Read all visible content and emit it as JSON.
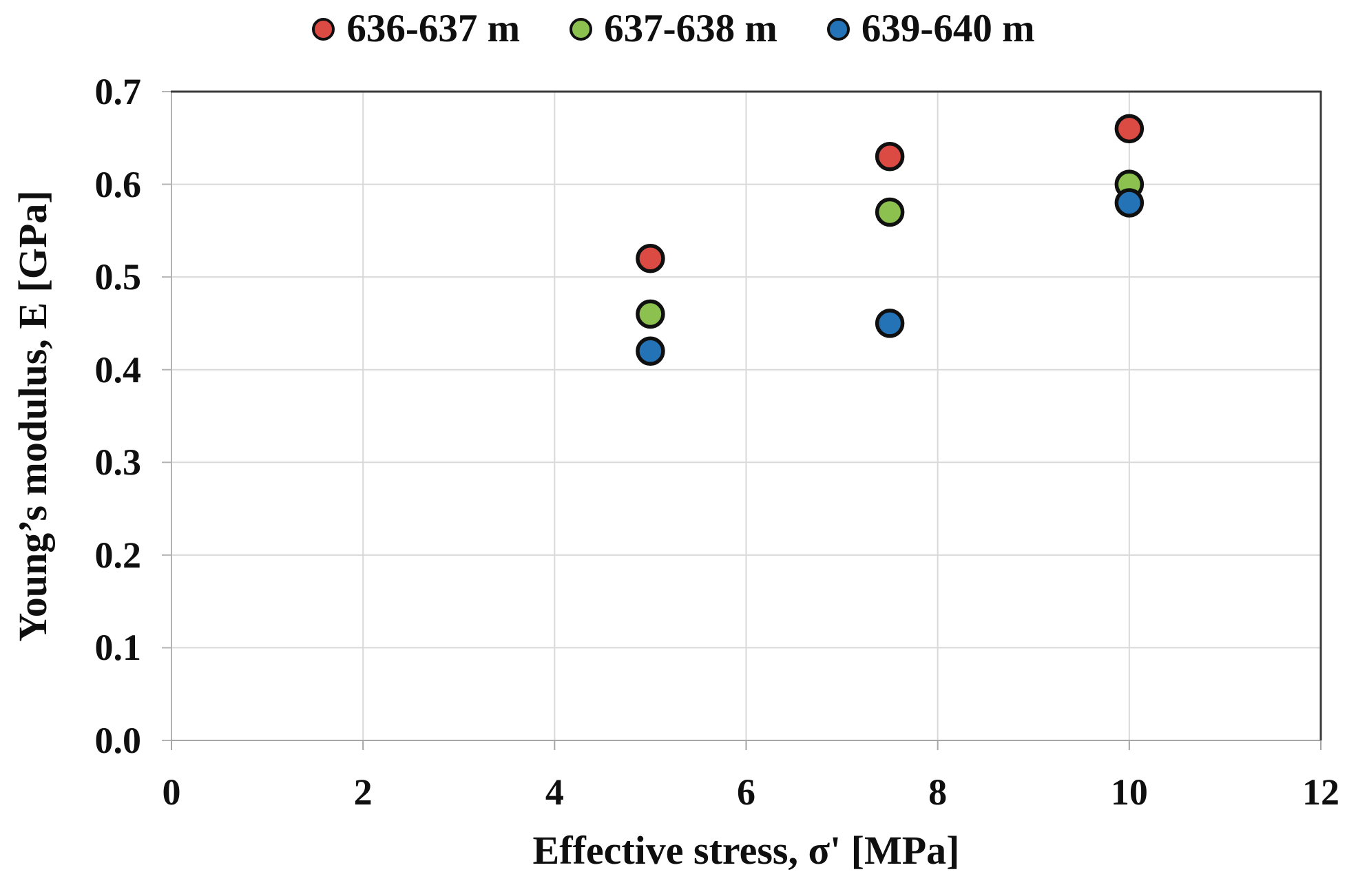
{
  "chart_data": {
    "type": "scatter",
    "title": "",
    "xlabel": "Effective stress, σ' [MPa]",
    "ylabel": "Young’s modulus, E [GPa]",
    "xlim": [
      0,
      12
    ],
    "ylim": [
      0.0,
      0.7
    ],
    "x_ticks": [
      0,
      2,
      4,
      6,
      8,
      10,
      12
    ],
    "x_tick_labels": [
      "0",
      "2",
      "4",
      "6",
      "8",
      "10",
      "12"
    ],
    "y_ticks": [
      0.0,
      0.1,
      0.2,
      0.3,
      0.4,
      0.5,
      0.6,
      0.7
    ],
    "y_tick_labels": [
      "0.0",
      "0.1",
      "0.2",
      "0.3",
      "0.4",
      "0.5",
      "0.6",
      "0.7"
    ],
    "grid": true,
    "legend_position": "top-center",
    "marker": "circle",
    "colors": {
      "marker_outline": "#101010",
      "gridline": "#d9d9d9",
      "axis_line": "#b3b3b3",
      "bottom_axis_line": "#a6a6a6",
      "plot_border_dark": "#3a3a3a",
      "text": "#0f0f0f"
    },
    "series": [
      {
        "name": "636-637 m",
        "color": "#dc4b43",
        "points": [
          [
            5,
            0.52
          ],
          [
            7.5,
            0.63
          ],
          [
            10,
            0.66
          ]
        ]
      },
      {
        "name": "637-638 m",
        "color": "#8cc04f",
        "points": [
          [
            5,
            0.46
          ],
          [
            7.5,
            0.57
          ],
          [
            10,
            0.6
          ]
        ]
      },
      {
        "name": "639-640 m",
        "color": "#2473b7",
        "points": [
          [
            5,
            0.42
          ],
          [
            7.5,
            0.45
          ],
          [
            10,
            0.58
          ]
        ]
      }
    ]
  }
}
